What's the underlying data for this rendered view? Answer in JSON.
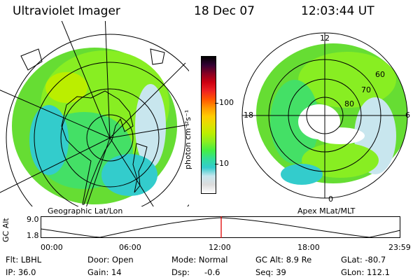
{
  "header": {
    "instrument": "Ultraviolet Imager",
    "date": "18 Dec 07",
    "time": "12:03:44 UT"
  },
  "left_panel": {
    "caption": "Geographic Lat/Lon"
  },
  "right_panel": {
    "caption": "Apex MLat/MLT",
    "mlt_labels": [
      "12",
      "18",
      "6",
      "0"
    ],
    "mlat_labels": [
      "60",
      "70",
      "80"
    ]
  },
  "colorbar": {
    "unit_label": "photon cm⁻²s⁻¹",
    "tick_labels": [
      "100",
      "10"
    ],
    "colors": [
      "#ffffff",
      "#dcdcdc",
      "#c8e6ee",
      "#33cccc",
      "#33dd99",
      "#44ee44",
      "#88ee22",
      "#bbee00",
      "#e0e000",
      "#ffcc00",
      "#ff9900",
      "#ff5500",
      "#ee2222",
      "#cc0011",
      "#880022",
      "#330033",
      "#000000"
    ]
  },
  "altitude_plot": {
    "ylabel": "GC Alt",
    "y_ticks": [
      "9.0",
      "1.8"
    ],
    "x_ticks": [
      "00:00",
      "06:00",
      "12:00",
      "18:00",
      "23:59"
    ],
    "marker_color": "#e00000"
  },
  "info": {
    "flt": "Flt: LBHL",
    "ip": "IP: 36.0",
    "door": "Door: Open",
    "gain": "Gain: 14",
    "mode": "Mode: Normal",
    "dsp_label": "Dsp:",
    "dsp_value": "-0.6",
    "gcalt": "GC Alt: 8.9 Re",
    "seq": "Seq: 39",
    "glat": "GLat: -80.7",
    "glon": "GLon: 112.1"
  }
}
